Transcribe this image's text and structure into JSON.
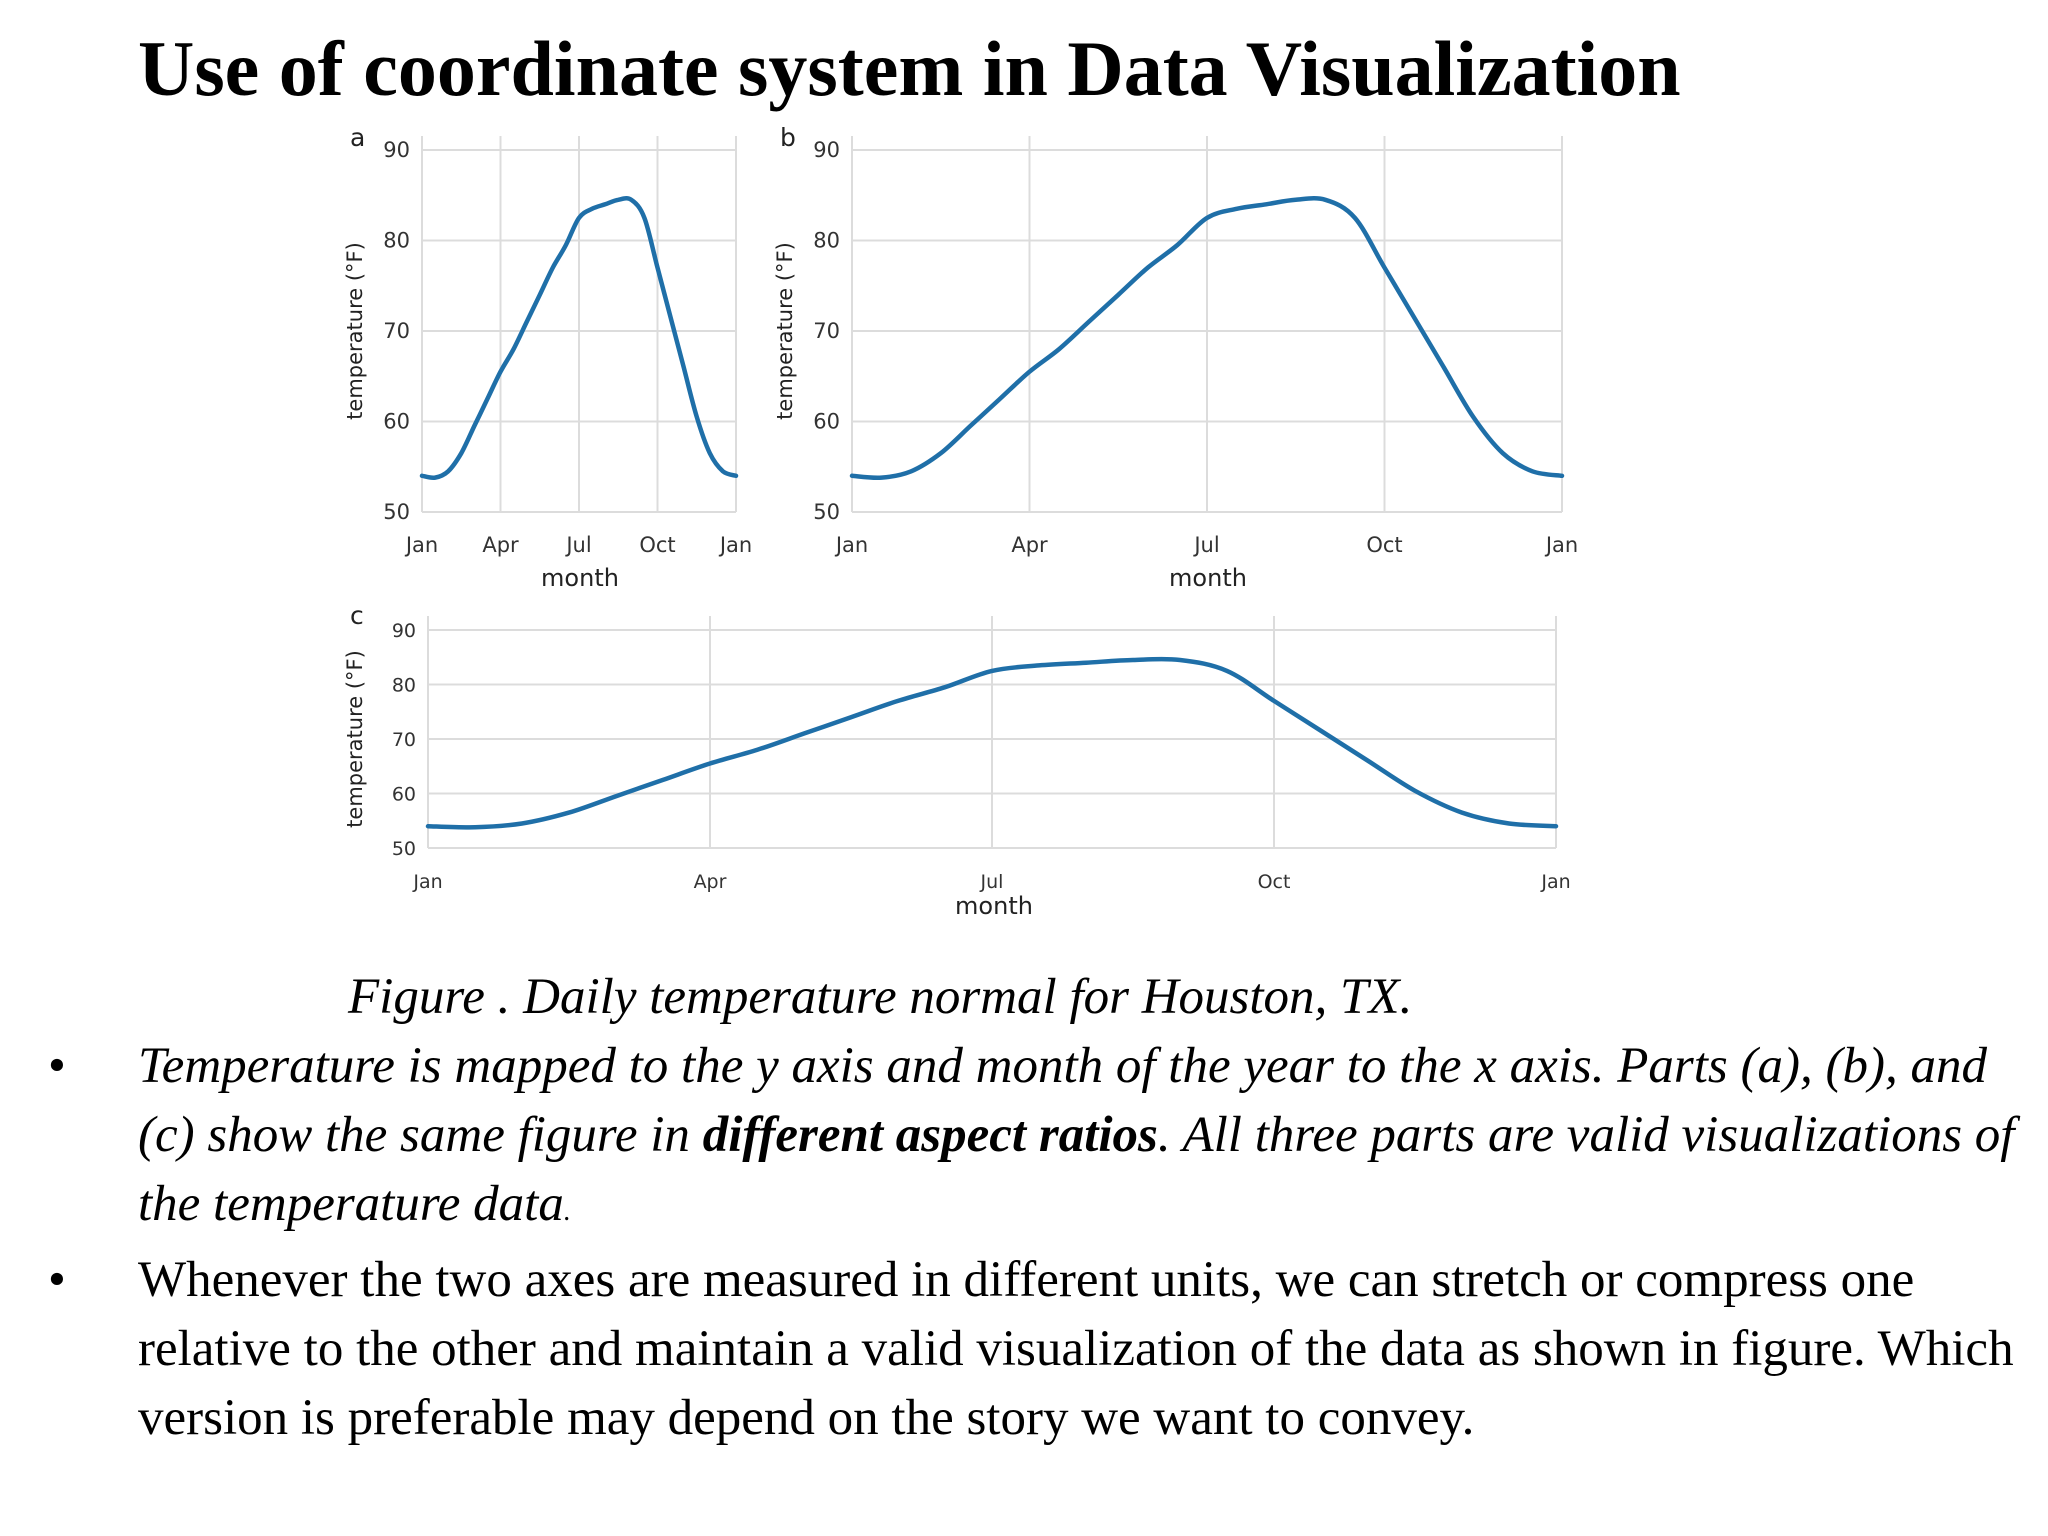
{
  "title": "Use of coordinate system in Data Visualization",
  "caption": "Figure . Daily temperature normal for Houston, TX.",
  "bullets": {
    "b1_part1": " Temperature is mapped to the y axis and month of the year to the x axis.  Parts (a), (b), and (c) show the same figure in ",
    "b1_bold": "different aspect ratios",
    "b1_part2": ". All three parts are valid visualizations of the temperature data",
    "b1_end": ".",
    "b2": "Whenever the two axes are measured in different units, we can stretch or compress one relative to the other and maintain a valid visualization of the data  as shown in figure. Which version is preferable may depend on the story we want to convey.",
    "marker": "•"
  },
  "chart_data": [
    {
      "type": "line",
      "panel_label": "a",
      "xlabel": "month",
      "ylabel": "temperature (°F)",
      "x_ticks": [
        "Jan",
        "Apr",
        "Jul",
        "Oct",
        "Jan"
      ],
      "y_ticks": [
        50,
        60,
        70,
        80,
        90
      ],
      "ylim": [
        50,
        90
      ],
      "xlim": [
        0,
        12
      ],
      "grid": true,
      "color": "#1f6fa8",
      "x": [
        0,
        0.5,
        1,
        1.5,
        2,
        2.5,
        3,
        3.5,
        4,
        4.5,
        5,
        5.5,
        6,
        6.5,
        7,
        7.5,
        8,
        8.5,
        9,
        9.5,
        10,
        10.5,
        11,
        11.5,
        12
      ],
      "values": [
        54,
        53.8,
        54.5,
        56.5,
        59.5,
        62.5,
        65.5,
        68,
        71,
        74,
        77,
        79.5,
        82.5,
        83.5,
        84,
        84.5,
        84.5,
        82.5,
        77,
        71.5,
        66,
        60.5,
        56.5,
        54.5,
        54
      ]
    },
    {
      "type": "line",
      "panel_label": "b",
      "xlabel": "month",
      "ylabel": "temperature (°F)",
      "x_ticks": [
        "Jan",
        "Apr",
        "Jul",
        "Oct",
        "Jan"
      ],
      "y_ticks": [
        50,
        60,
        70,
        80,
        90
      ],
      "ylim": [
        50,
        90
      ],
      "xlim": [
        0,
        12
      ],
      "grid": true,
      "color": "#1f6fa8",
      "x": [
        0,
        0.5,
        1,
        1.5,
        2,
        2.5,
        3,
        3.5,
        4,
        4.5,
        5,
        5.5,
        6,
        6.5,
        7,
        7.5,
        8,
        8.5,
        9,
        9.5,
        10,
        10.5,
        11,
        11.5,
        12
      ],
      "values": [
        54,
        53.8,
        54.5,
        56.5,
        59.5,
        62.5,
        65.5,
        68,
        71,
        74,
        77,
        79.5,
        82.5,
        83.5,
        84,
        84.5,
        84.5,
        82.5,
        77,
        71.5,
        66,
        60.5,
        56.5,
        54.5,
        54
      ]
    },
    {
      "type": "line",
      "panel_label": "c",
      "xlabel": "month",
      "ylabel": "temperature (°F)",
      "x_ticks": [
        "Jan",
        "Apr",
        "Jul",
        "Oct",
        "Jan"
      ],
      "y_ticks": [
        50,
        60,
        70,
        80,
        90
      ],
      "ylim": [
        50,
        90
      ],
      "xlim": [
        0,
        12
      ],
      "grid": true,
      "color": "#1f6fa8",
      "x": [
        0,
        0.5,
        1,
        1.5,
        2,
        2.5,
        3,
        3.5,
        4,
        4.5,
        5,
        5.5,
        6,
        6.5,
        7,
        7.5,
        8,
        8.5,
        9,
        9.5,
        10,
        10.5,
        11,
        11.5,
        12
      ],
      "values": [
        54,
        53.8,
        54.5,
        56.5,
        59.5,
        62.5,
        65.5,
        68,
        71,
        74,
        77,
        79.5,
        82.5,
        83.5,
        84,
        84.5,
        84.5,
        82.5,
        77,
        71.5,
        66,
        60.5,
        56.5,
        54.5,
        54
      ]
    }
  ]
}
